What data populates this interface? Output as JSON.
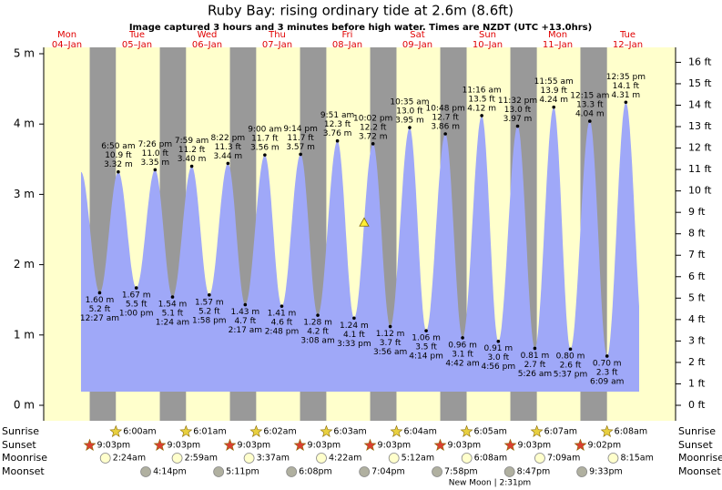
{
  "chart_data": {
    "type": "area",
    "title": "Ruby Bay: rising  ordinary tide at 2.6m (8.6ft)",
    "subtitle": "Image captured 3 hours and 3 minutes before high water. Times are NZDT (UTC +13.0hrs)",
    "day_names": [
      "Mon",
      "Tue",
      "Wed",
      "Thu",
      "Fri",
      "Sat",
      "Sun",
      "Mon",
      "Tue"
    ],
    "dates": [
      "04–Jan",
      "05–Jan",
      "06–Jan",
      "07–Jan",
      "08–Jan",
      "09–Jan",
      "10–Jan",
      "11–Jan",
      "12–Jan"
    ],
    "color": "#9fa8f8",
    "ylim": [
      0,
      5
    ],
    "yticks": [
      {
        "value": 0,
        "label": "0 m"
      },
      {
        "value": 1,
        "label": "1 m"
      },
      {
        "value": 2,
        "label": "2 m"
      },
      {
        "value": 3,
        "label": "3 m"
      },
      {
        "value": 4,
        "label": "4 m"
      },
      {
        "value": 5,
        "label": "5 m"
      }
    ],
    "y2lim": [
      0,
      16.4
    ],
    "y2ticks": [
      {
        "value": 0,
        "label": "0 ft"
      },
      {
        "value": 1,
        "label": "1 ft"
      },
      {
        "value": 2,
        "label": "2 ft"
      },
      {
        "value": 3,
        "label": "3 ft"
      },
      {
        "value": 4,
        "label": "4 ft"
      },
      {
        "value": 5,
        "label": "5 ft"
      },
      {
        "value": 6,
        "label": "6 ft"
      },
      {
        "value": 7,
        "label": "7 ft"
      },
      {
        "value": 8,
        "label": "8 ft"
      },
      {
        "value": 9,
        "label": "9 ft"
      },
      {
        "value": 10,
        "label": "10 ft"
      },
      {
        "value": 11,
        "label": "11 ft"
      },
      {
        "value": 12,
        "label": "12 ft"
      },
      {
        "value": 13,
        "label": "13 ft"
      },
      {
        "value": 14,
        "label": "14 ft"
      },
      {
        "value": 15,
        "label": "15 ft"
      },
      {
        "value": 16,
        "label": "16 ft"
      }
    ],
    "current_level": 2.6,
    "tides": [
      {
        "times": [],
        "values": [],
        "value_labels": [],
        "ft_labels": []
      },
      {
        "times": [
          "12:27 am",
          "6:50 am",
          "1:00 pm",
          "7:26 pm"
        ],
        "values": [
          1.6,
          3.32,
          1.67,
          3.35
        ],
        "value_labels": [
          "1.60 m",
          "3.32 m",
          "1.67 m",
          "3.35 m"
        ],
        "ft_labels": [
          "5.2 ft",
          "10.9 ft",
          "5.5 ft",
          "11.0 ft"
        ]
      },
      {
        "times": [
          "1:24 am",
          "7:59 am",
          "1:58 pm",
          "8:22 pm"
        ],
        "values": [
          1.54,
          3.4,
          1.57,
          3.44
        ],
        "value_labels": [
          "1.54 m",
          "3.40 m",
          "1.57 m",
          "3.44 m"
        ],
        "ft_labels": [
          "5.1 ft",
          "11.2 ft",
          "5.2 ft",
          "11.3 ft"
        ]
      },
      {
        "times": [
          "2:17 am",
          "9:00 am",
          "2:48 pm",
          "9:14 pm"
        ],
        "values": [
          1.43,
          3.56,
          1.41,
          3.57
        ],
        "value_labels": [
          "1.43 m",
          "3.56 m",
          "1.41 m",
          "3.57 m"
        ],
        "ft_labels": [
          "4.7 ft",
          "11.7 ft",
          "4.6 ft",
          "11.7 ft"
        ]
      },
      {
        "times": [
          "3:08 am",
          "9:51 am",
          "3:33 pm",
          "10:02 pm"
        ],
        "values": [
          1.28,
          3.76,
          1.24,
          3.72
        ],
        "value_labels": [
          "1.28 m",
          "3.76 m",
          "1.24 m",
          "3.72 m"
        ],
        "ft_labels": [
          "4.2 ft",
          "12.3 ft",
          "4.1 ft",
          "12.2 ft"
        ]
      },
      {
        "times": [
          "3:56 am",
          "10:35 am",
          "4:14 pm",
          "10:48 pm"
        ],
        "values": [
          1.12,
          3.95,
          1.06,
          3.86
        ],
        "value_labels": [
          "1.12 m",
          "3.95 m",
          "1.06 m",
          "3.86 m"
        ],
        "ft_labels": [
          "3.7 ft",
          "13.0 ft",
          "3.5 ft",
          "12.7 ft"
        ]
      },
      {
        "times": [
          "4:42 am",
          "11:16 am",
          "4:56 pm",
          "11:32 pm"
        ],
        "values": [
          0.96,
          4.12,
          0.91,
          3.97
        ],
        "value_labels": [
          "0.96 m",
          "4.12 m",
          "0.91 m",
          "3.97 m"
        ],
        "ft_labels": [
          "3.1 ft",
          "13.5 ft",
          "3.0 ft",
          "13.0 ft"
        ]
      },
      {
        "times": [
          "5:26 am",
          "11:55 am",
          "5:37 pm"
        ],
        "values": [
          0.81,
          4.24,
          0.8
        ],
        "value_labels": [
          "0.81 m",
          "4.24 m",
          "0.80 m"
        ],
        "ft_labels": [
          "2.7 ft",
          "13.9 ft",
          "2.6 ft"
        ]
      },
      {
        "times": [
          "12:15 am",
          "6:09 am",
          "12:35 pm"
        ],
        "values": [
          4.04,
          0.7,
          4.31
        ],
        "value_labels": [
          "4.04 m",
          "0.70 m",
          "4.31 m"
        ],
        "ft_labels": [
          "13.3 ft",
          "2.3 ft",
          "14.1 ft"
        ]
      }
    ],
    "rows": [
      {
        "name": "Sunrise",
        "kind": "sunrise",
        "times": [
          null,
          "6:00am",
          "6:01am",
          "6:02am",
          "6:03am",
          "6:04am",
          "6:05am",
          "6:07am",
          "6:08am"
        ]
      },
      {
        "name": "Sunset",
        "kind": "sunset",
        "times": [
          "9:03pm",
          "9:03pm",
          "9:03pm",
          "9:03pm",
          "9:03pm",
          "9:03pm",
          "9:03pm",
          "9:02pm",
          null
        ]
      },
      {
        "name": "Moonrise",
        "kind": "moonrise",
        "times": [
          null,
          "2:24am",
          "2:59am",
          "3:37am",
          "4:22am",
          "5:12am",
          "6:08am",
          "7:09am",
          "8:15am"
        ]
      },
      {
        "name": "Moonset",
        "kind": "moonset",
        "times": [
          null,
          "4:14pm",
          "5:11pm",
          "6:08pm",
          "7:04pm",
          "7:58pm",
          "8:47pm",
          "9:33pm",
          null
        ]
      }
    ],
    "moon_phase": "New Moon | 2:31pm"
  }
}
